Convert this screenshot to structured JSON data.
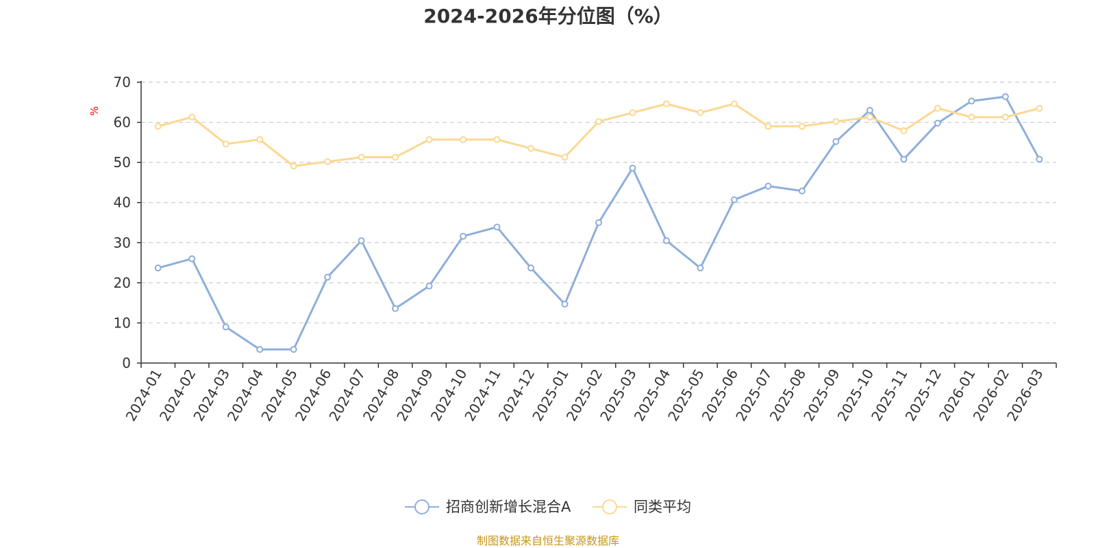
{
  "chart_data": {
    "type": "line",
    "title": "2024-2026年分位图（%）",
    "ylabel": "%",
    "xlabel": "",
    "ylim": [
      0,
      70
    ],
    "yticks": [
      0,
      10,
      20,
      30,
      40,
      50,
      60,
      70
    ],
    "grid": true,
    "legend_position": "bottom-center",
    "categories": [
      "2024-01",
      "2024-02",
      "2024-03",
      "2024-04",
      "2024-05",
      "2024-06",
      "2024-07",
      "2024-08",
      "2024-09",
      "2024-10",
      "2024-11",
      "2024-12",
      "2025-01",
      "2025-02",
      "2025-03",
      "2025-04",
      "2025-05",
      "2025-06",
      "2025-07",
      "2025-08",
      "2025-09",
      "2025-10",
      "2025-11",
      "2025-12",
      "2026-01",
      "2026-02",
      "2026-03"
    ],
    "series": [
      {
        "name": "招商创新增长混合A",
        "color": "#8eaedb",
        "values": [
          23.7,
          26.0,
          9.0,
          3.4,
          3.4,
          21.4,
          30.5,
          13.6,
          19.2,
          31.6,
          33.9,
          23.7,
          14.7,
          35.0,
          48.6,
          30.5,
          23.7,
          40.7,
          44.1,
          42.9,
          55.2,
          63.0,
          50.8,
          59.8,
          65.3,
          66.4,
          50.8
        ]
      },
      {
        "name": "同类平均",
        "color": "#fbd891",
        "values": [
          59.0,
          61.3,
          54.6,
          55.7,
          49.1,
          50.2,
          51.3,
          51.3,
          55.7,
          55.7,
          55.7,
          53.5,
          51.3,
          60.2,
          62.4,
          64.6,
          62.4,
          64.6,
          59.0,
          59.0,
          60.2,
          61.3,
          57.9,
          63.5,
          61.3,
          61.3,
          63.5
        ]
      }
    ]
  },
  "footer": {
    "source": "制图数据来自恒生聚源数据库"
  }
}
